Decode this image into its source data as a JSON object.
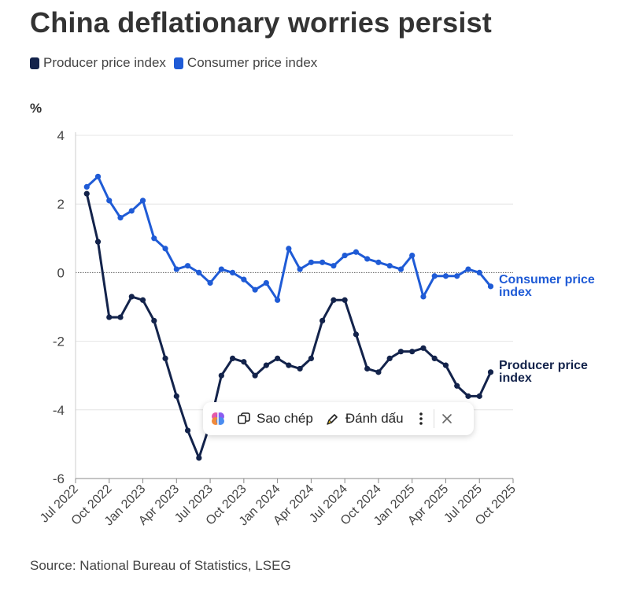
{
  "title": "China deflationary worries persist",
  "legend": [
    {
      "label": "Producer price index",
      "color": "#13234b"
    },
    {
      "label": "Consumer price index",
      "color": "#1f5bd6"
    }
  ],
  "unit_label": "%",
  "source": "Source: National Bureau of Statistics, LSEG",
  "toolbar": {
    "copy_label": "Sao chép",
    "highlight_label": "Đánh dấu"
  },
  "chart_data": {
    "type": "line",
    "title": "China deflationary worries persist",
    "ylabel": "%",
    "ylim": [
      -6,
      4
    ],
    "yticks": [
      4,
      2,
      0,
      -2,
      -4,
      -6
    ],
    "xticks": [
      "Jul 2022",
      "Oct 2022",
      "Jan 2023",
      "Apr 2023",
      "Jul 2023",
      "Oct 2023",
      "Jan 2024",
      "Apr 2024",
      "Jul 2024",
      "Oct 2024",
      "Jan 2025",
      "Apr 2025",
      "Jul 2025",
      "Oct 2025"
    ],
    "x_start": "Jul 2022",
    "x_end": "Oct 2025",
    "series": [
      {
        "name": "Consumer price index",
        "end_label": "Consumer price index",
        "color": "#1f5bd6",
        "values": [
          2.5,
          2.8,
          2.1,
          1.6,
          1.8,
          2.1,
          1.0,
          0.7,
          0.1,
          0.2,
          0.0,
          -0.3,
          0.1,
          0.0,
          -0.2,
          -0.5,
          -0.3,
          -0.8,
          0.7,
          0.1,
          0.3,
          0.3,
          0.2,
          0.5,
          0.6,
          0.4,
          0.3,
          0.2,
          0.1,
          0.5,
          -0.7,
          -0.1,
          -0.1,
          -0.1,
          0.1,
          0.0,
          -0.4
        ]
      },
      {
        "name": "Producer price index",
        "end_label": "Producer price index",
        "color": "#13234b",
        "values": [
          2.3,
          0.9,
          -1.3,
          -1.3,
          -0.7,
          -0.8,
          -1.4,
          -2.5,
          -3.6,
          -4.6,
          -5.4,
          -4.4,
          -3.0,
          -2.5,
          -2.6,
          -3.0,
          -2.7,
          -2.5,
          -2.7,
          -2.8,
          -2.5,
          -1.4,
          -0.8,
          -0.8,
          -1.8,
          -2.8,
          -2.9,
          -2.5,
          -2.3,
          -2.3,
          -2.2,
          -2.5,
          -2.7,
          -3.3,
          -3.6,
          -3.6,
          -2.9
        ]
      }
    ]
  }
}
